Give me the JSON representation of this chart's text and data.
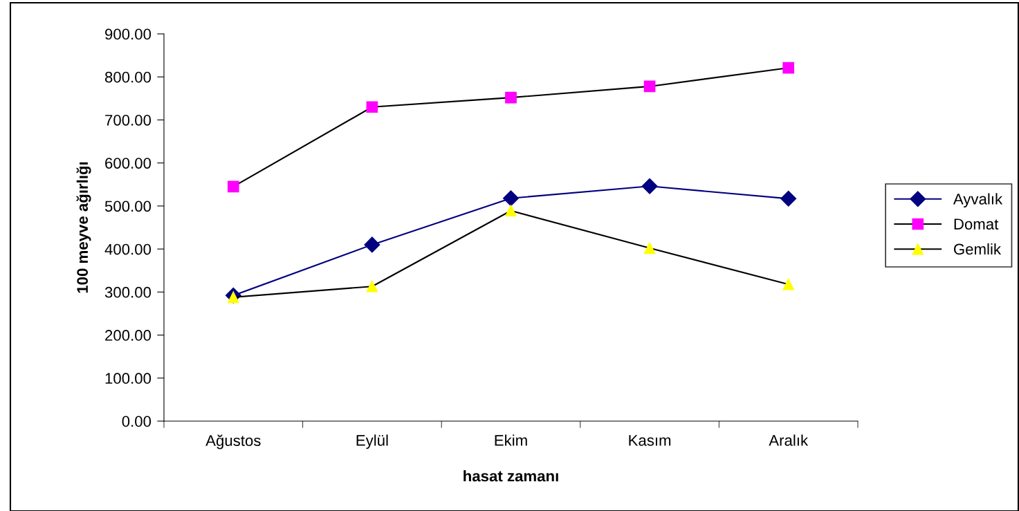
{
  "chart_data": {
    "type": "line",
    "xlabel": "hasat zamanı",
    "ylabel": "100 meyve ağırlığı",
    "categories": [
      "Ağustos",
      "Eylül",
      "Ekim",
      "Kasım",
      "Aralık"
    ],
    "series": [
      {
        "name": "Ayvalık",
        "color": "#000080",
        "marker": "diamond",
        "values": [
          292,
          410,
          518,
          546,
          517
        ]
      },
      {
        "name": "Domat",
        "color": "#ff00ff",
        "marker": "square",
        "values": [
          545,
          730,
          752,
          778,
          821
        ]
      },
      {
        "name": "Gemlik",
        "color": "#ffff00",
        "marker": "triangle",
        "values": [
          288,
          313,
          489,
          402,
          318
        ]
      }
    ],
    "ylim": [
      0,
      900
    ],
    "yticks": [
      {
        "value": 0,
        "label": "0.00"
      },
      {
        "value": 100,
        "label": "100.00"
      },
      {
        "value": 200,
        "label": "200.00"
      },
      {
        "value": 300,
        "label": "300.00"
      },
      {
        "value": 400,
        "label": "400.00"
      },
      {
        "value": 500,
        "label": "500.00"
      },
      {
        "value": 600,
        "label": "600.00"
      },
      {
        "value": 700,
        "label": "700.00"
      },
      {
        "value": 800,
        "label": "800.00"
      },
      {
        "value": 900,
        "label": "900.00"
      }
    ],
    "grid": false,
    "legend": "right",
    "line_style": "solid"
  }
}
